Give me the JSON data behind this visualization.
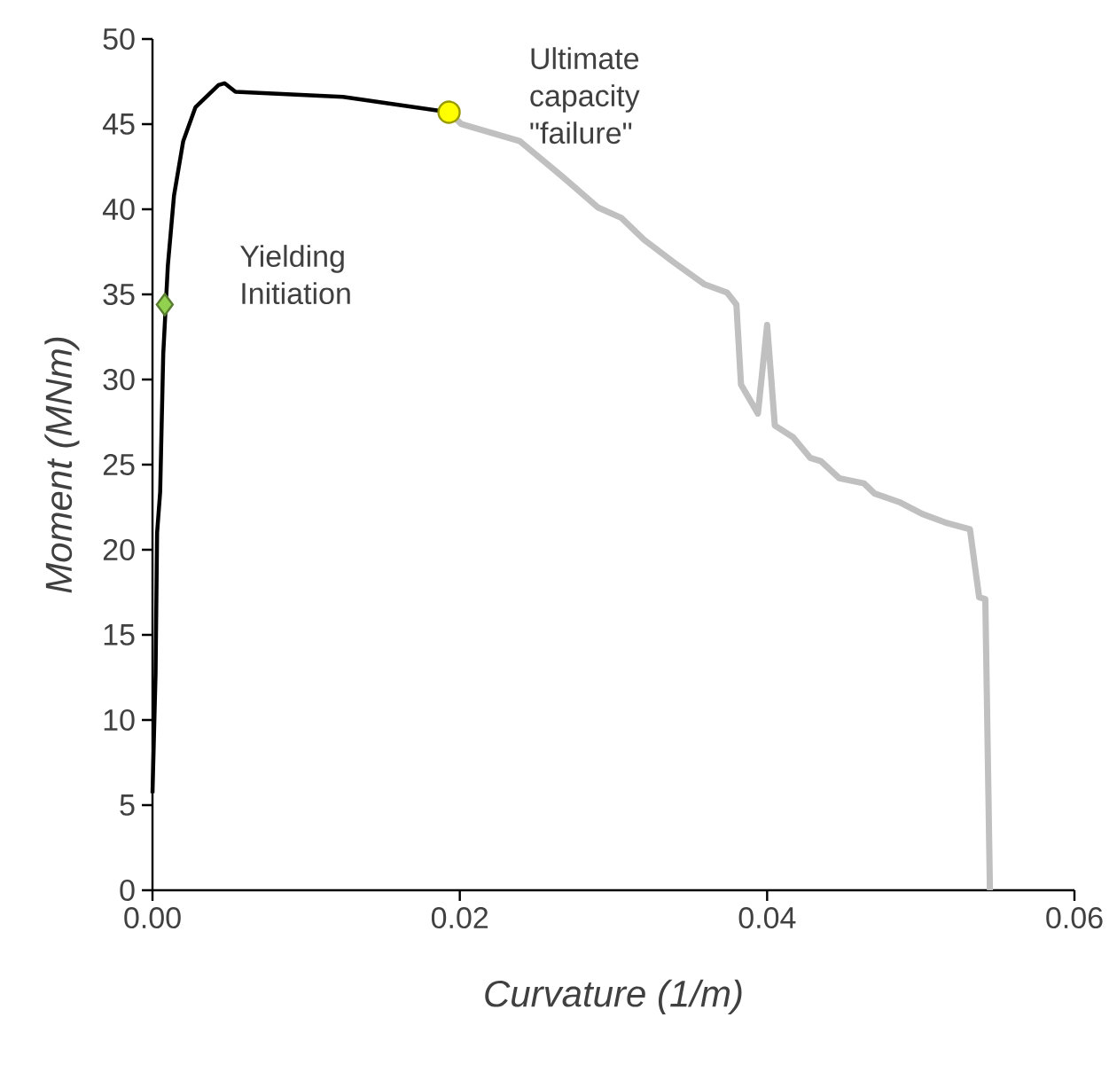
{
  "chart_data": {
    "type": "line",
    "xlabel": "Curvature (1/m)",
    "ylabel": "Moment (MNm)",
    "xlim": [
      0,
      0.06
    ],
    "ylim": [
      0,
      50
    ],
    "xticks": [
      {
        "value": 0,
        "label": "0.00"
      },
      {
        "value": 0.02,
        "label": "0.02"
      },
      {
        "value": 0.04,
        "label": "0.04"
      },
      {
        "value": 0.06,
        "label": "0.06"
      }
    ],
    "yticks": [
      0,
      5,
      10,
      15,
      20,
      25,
      30,
      35,
      40,
      45,
      50
    ],
    "grid": false,
    "series": [
      {
        "color": "#c0c0c0",
        "x": [
          0.0193,
          0.0201,
          0.0239,
          0.0267,
          0.029,
          0.0305,
          0.032,
          0.0339,
          0.0359,
          0.0374,
          0.038,
          0.0383,
          0.0394,
          0.04,
          0.0405,
          0.0417,
          0.0428,
          0.0435,
          0.0447,
          0.0463,
          0.047,
          0.0486,
          0.0501,
          0.0516,
          0.0532,
          0.0538,
          0.0542,
          0.0545
        ],
        "values": [
          45.7,
          45.0,
          44.0,
          41.9,
          40.1,
          39.5,
          38.2,
          36.9,
          35.6,
          35.1,
          34.4,
          29.7,
          28.0,
          33.2,
          27.3,
          26.6,
          25.4,
          25.2,
          24.2,
          23.9,
          23.3,
          22.8,
          22.1,
          21.6,
          21.2,
          17.2,
          17.1,
          0
        ]
      },
      {
        "color": "#000000",
        "x": [
          0.0,
          0.0002,
          0.0003,
          0.0005,
          0.0007,
          0.001,
          0.0014,
          0.002,
          0.0028,
          0.0043,
          0.0047,
          0.0054,
          0.0124,
          0.0193
        ],
        "values": [
          5.7,
          12.7,
          21.0,
          23.4,
          31.5,
          36.7,
          40.8,
          44.0,
          46.0,
          47.3,
          47.4,
          46.9,
          46.6,
          45.7
        ]
      },
      {
        "type": "scatter",
        "marker": "diamond",
        "color": "#92d050",
        "x": [
          0.0008
        ],
        "values": [
          34.4
        ]
      },
      {
        "type": "scatter",
        "marker": "circle",
        "color": "#ffff00",
        "x": [
          0.0193
        ],
        "values": [
          45.7
        ]
      }
    ],
    "annotations": [
      {
        "text": "Yielding Initiation",
        "x": 0.0008,
        "y": 34.4
      },
      {
        "text": "Ultimate capacity \"failure\"",
        "x": 0.0193,
        "y": 45.7
      }
    ]
  }
}
